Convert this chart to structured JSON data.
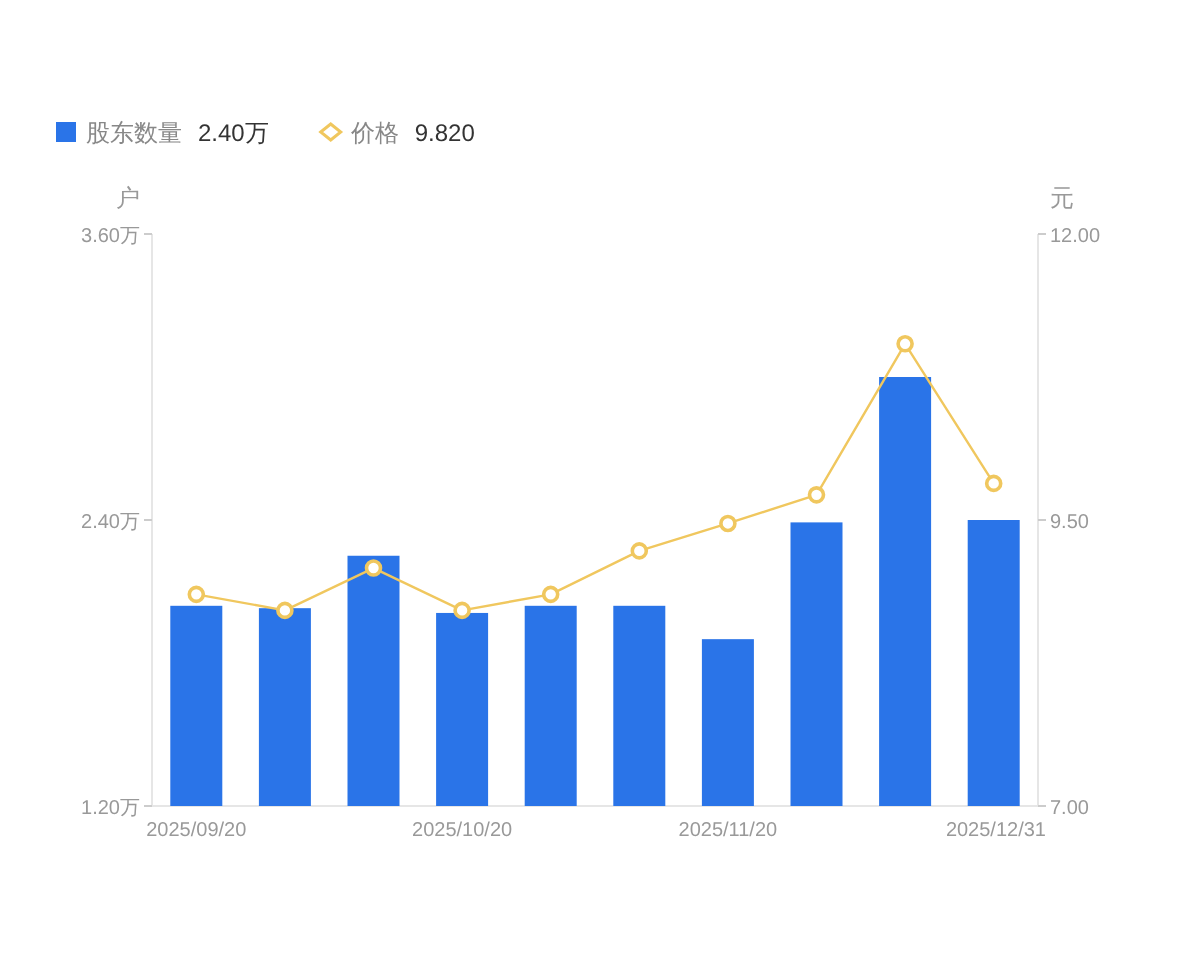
{
  "chart_data": {
    "type": "bar",
    "categories": [
      "2025/09/20",
      null,
      null,
      "2025/10/20",
      null,
      null,
      "2025/11/20",
      null,
      null,
      "2025/12/31"
    ],
    "ylabel": "户",
    "y2label": "元",
    "ylim": [
      1.2,
      3.6
    ],
    "yticks": [
      {
        "value": 1.2,
        "label": "1.20万"
      },
      {
        "value": 2.4,
        "label": "2.40万"
      },
      {
        "value": 3.6,
        "label": "3.60万"
      }
    ],
    "y2lim": [
      7,
      12
    ],
    "y2ticks": [
      {
        "value": 7,
        "label": "7.00"
      },
      {
        "value": 9.5,
        "label": "9.50"
      },
      {
        "value": 12,
        "label": "12.00"
      }
    ],
    "series": [
      {
        "name": "股东数量",
        "color": "#2a74e8",
        "values": [
          2.04,
          2.03,
          2.25,
          2.01,
          2.04,
          2.04,
          1.9,
          2.39,
          3.0,
          2.4
        ]
      },
      {
        "name": "价格",
        "type": "line",
        "axis": "y2",
        "marker": "circle",
        "color": "#f0c75e",
        "values": [
          8.85,
          8.71,
          9.08,
          8.71,
          8.85,
          9.23,
          9.47,
          9.72,
          11.04,
          9.82
        ]
      }
    ],
    "legend": "top left",
    "annotations": [
      "2.40万",
      "9.820"
    ]
  }
}
